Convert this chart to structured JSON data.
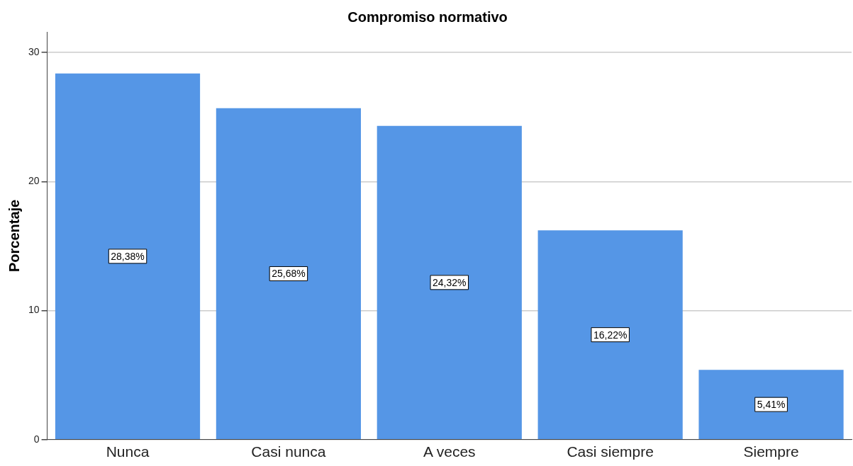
{
  "chart_data": {
    "type": "bar",
    "title": "Compromiso normativo",
    "ylabel": "Porcentaje",
    "categories": [
      "Nunca",
      "Casi nunca",
      "A veces",
      "Casi siempre",
      "Siempre"
    ],
    "values": [
      28.38,
      25.68,
      24.32,
      16.22,
      5.41
    ],
    "value_labels": [
      "28,38%",
      "25,68%",
      "24,32%",
      "16,22%",
      "5,41%"
    ],
    "color": "#5596e6",
    "ylim": [
      0,
      31.6
    ],
    "yticks": [
      0,
      10,
      20,
      30
    ],
    "grid": "y",
    "legend": false
  }
}
